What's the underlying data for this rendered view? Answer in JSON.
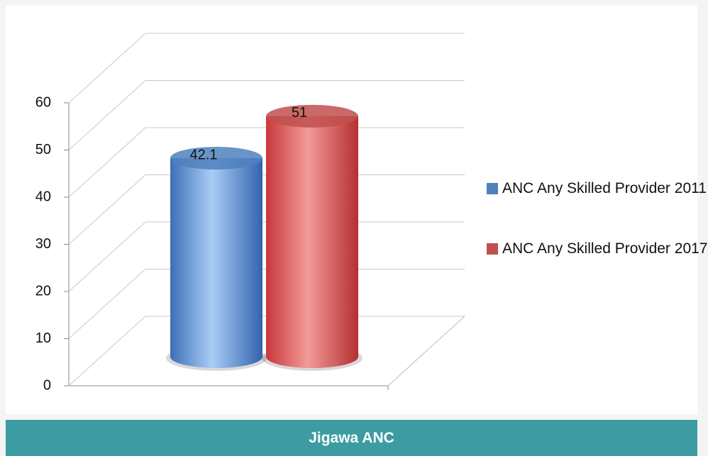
{
  "chart_data": {
    "type": "bar",
    "title": "Jigawa ANC",
    "categories": [
      null
    ],
    "series": [
      {
        "name": "ANC Any Skilled Provider 2011",
        "color": "#4f81bd",
        "values": [
          42.1
        ]
      },
      {
        "name": "ANC Any Skilled Provider 2017",
        "color": "#c0504d",
        "values": [
          51
        ]
      }
    ],
    "ylim": [
      0,
      60
    ],
    "yticks": [
      0,
      10,
      20,
      30,
      40,
      50,
      60
    ],
    "grid": true,
    "legend": "right"
  }
}
